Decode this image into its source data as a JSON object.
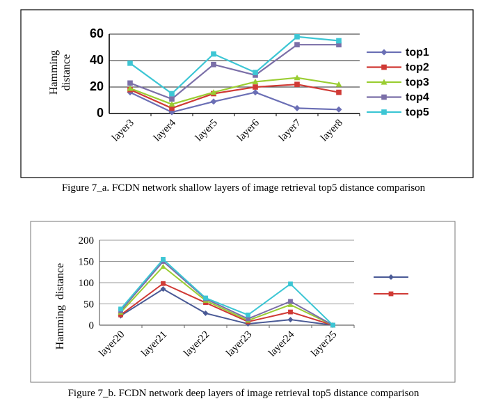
{
  "chart_data": [
    {
      "type": "line",
      "title": "",
      "caption": "Figure 7_a. FCDN network shallow layers of image retrieval top5 distance comparison",
      "ylabel_line1": "Hamming",
      "ylabel_line2": "distance",
      "categories": [
        "layer3",
        "layer4",
        "layer5",
        "layer6",
        "layer7",
        "layer8"
      ],
      "ylim": [
        0,
        60
      ],
      "yticks": [
        0,
        20,
        40,
        60
      ],
      "grid": true,
      "legend": "right",
      "series": [
        {
          "name": "top1",
          "color": "#6b6fb5",
          "marker": "diamond",
          "values": [
            16,
            1,
            9,
            16,
            4,
            3
          ]
        },
        {
          "name": "top2",
          "color": "#d03a35",
          "marker": "square",
          "values": [
            18,
            4,
            15,
            20,
            22,
            16
          ]
        },
        {
          "name": "top3",
          "color": "#9acd32",
          "marker": "triangle",
          "values": [
            19,
            7,
            16,
            24,
            27,
            22
          ]
        },
        {
          "name": "top4",
          "color": "#7b6fa8",
          "marker": "square",
          "values": [
            23,
            11,
            37,
            29,
            52,
            52
          ]
        },
        {
          "name": "top5",
          "color": "#3dc6d4",
          "marker": "square",
          "values": [
            38,
            15,
            45,
            31,
            58,
            55
          ]
        }
      ]
    },
    {
      "type": "line",
      "title": "",
      "caption": "Figure 7_b. FCDN network deep layers of image retrieval top5 distance comparison",
      "ylabel": "Hamming  distance",
      "categories": [
        "layer20",
        "layer21",
        "layer22",
        "layer23",
        "layer24",
        "layer25"
      ],
      "ylim": [
        0,
        200
      ],
      "yticks": [
        0,
        50,
        100,
        150,
        200
      ],
      "grid": true,
      "legend": "right",
      "series": [
        {
          "name": "",
          "color": "#4a5a96",
          "marker": "diamond",
          "values": [
            22,
            85,
            28,
            3,
            13,
            0
          ]
        },
        {
          "name": "",
          "color": "#d03a35",
          "marker": "square",
          "values": [
            24,
            98,
            53,
            8,
            31,
            0
          ]
        },
        {
          "name": "",
          "color": "#9acd32",
          "marker": "triangle",
          "values": [
            30,
            138,
            58,
            11,
            48,
            0
          ]
        },
        {
          "name": "",
          "color": "#7b6fa8",
          "marker": "square",
          "values": [
            34,
            150,
            62,
            15,
            56,
            0
          ]
        },
        {
          "name": "",
          "color": "#3dc6d4",
          "marker": "square",
          "values": [
            38,
            155,
            64,
            24,
            97,
            0
          ]
        }
      ]
    }
  ]
}
